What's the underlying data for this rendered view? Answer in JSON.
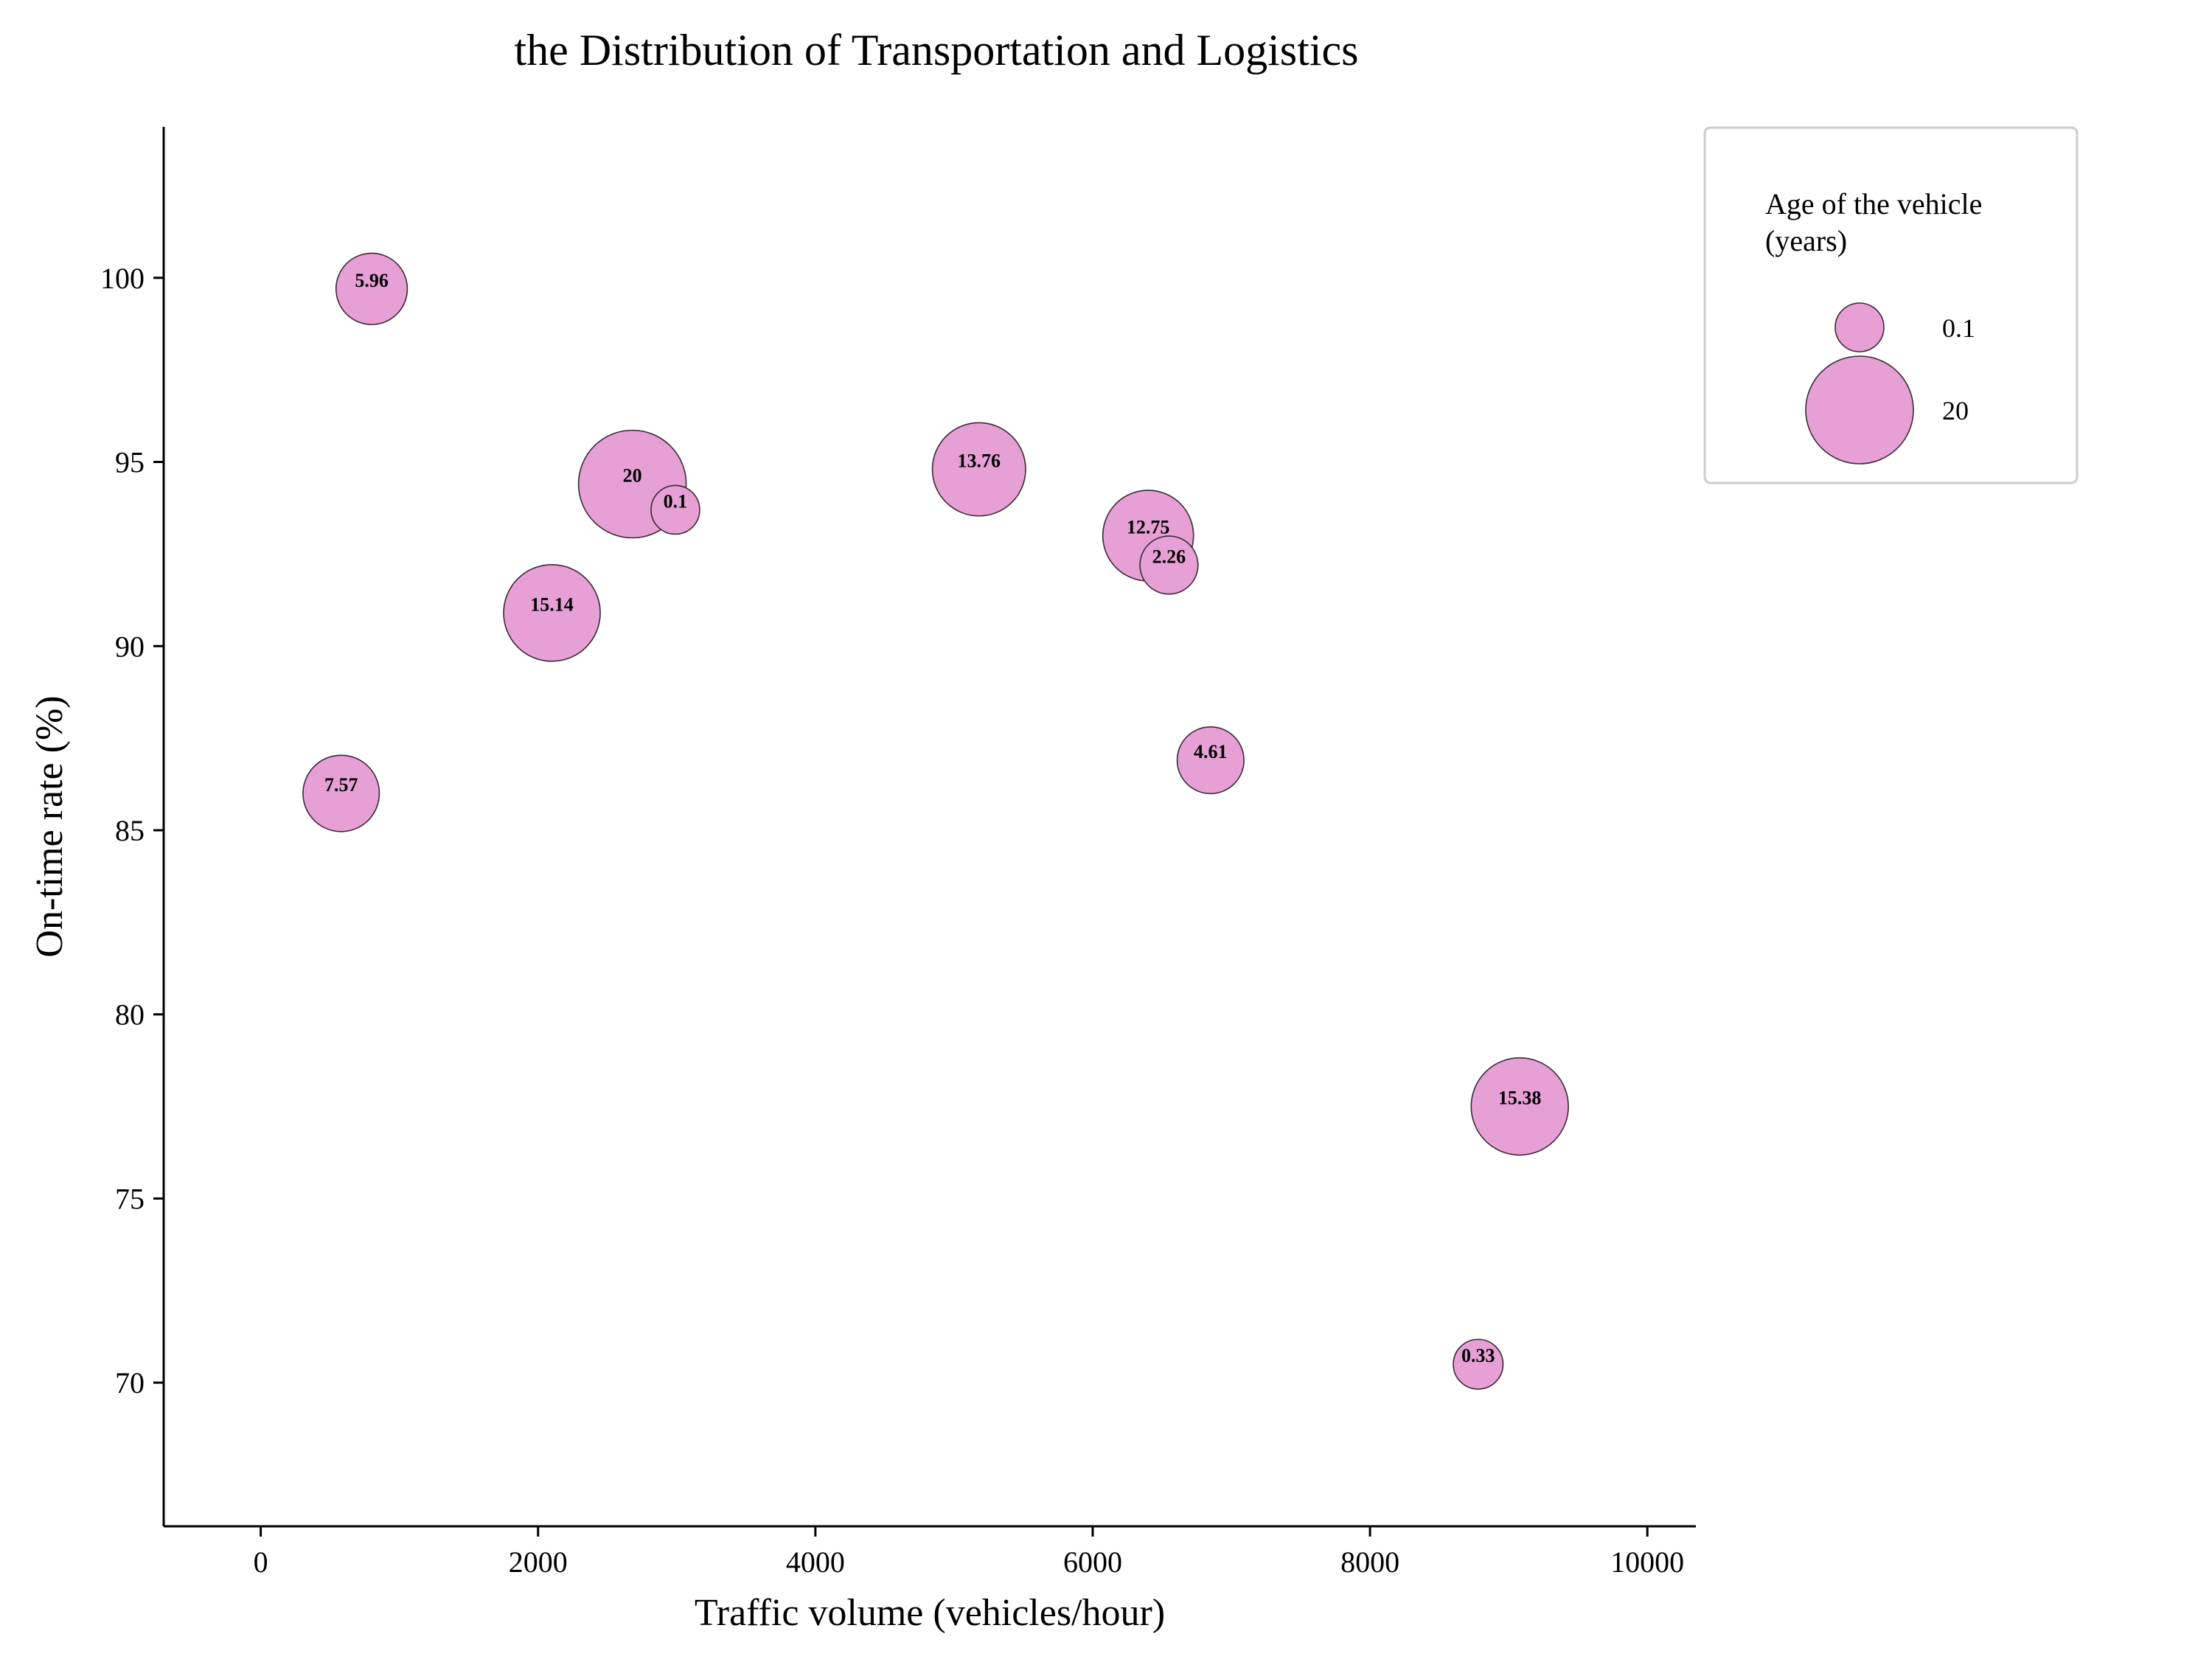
{
  "chart_data": {
    "type": "scatter",
    "title": "the Distribution of Transportation and Logistics",
    "xlabel": "Traffic volume (vehicles/hour)",
    "ylabel": "On-time rate (%)",
    "xlim": [
      -700,
      10350
    ],
    "ylim": [
      66.1,
      104.1
    ],
    "xticks": [
      0,
      2000,
      4000,
      6000,
      8000,
      10000
    ],
    "yticks": [
      70,
      75,
      80,
      85,
      90,
      95,
      100
    ],
    "grid": false,
    "legend_placement": "upper-right-outside",
    "size_legend": {
      "title": "Age of the vehicle\n(years)",
      "entries": [
        {
          "label": "0.1",
          "size": 0.1
        },
        {
          "label": "20",
          "size": 20
        }
      ]
    },
    "bubble_color": "#e7a0d6",
    "edge_color": "#3a2a35",
    "points": [
      {
        "x": 800,
        "y": 99.7,
        "size": 5.96,
        "label": "5.96"
      },
      {
        "x": 2680,
        "y": 94.4,
        "size": 20,
        "label": "20"
      },
      {
        "x": 2990,
        "y": 93.7,
        "size": 0.1,
        "label": "0.1"
      },
      {
        "x": 5180,
        "y": 94.8,
        "size": 13.76,
        "label": "13.76"
      },
      {
        "x": 6400,
        "y": 93.0,
        "size": 12.75,
        "label": "12.75"
      },
      {
        "x": 6550,
        "y": 92.2,
        "size": 2.26,
        "label": "2.26"
      },
      {
        "x": 2100,
        "y": 90.9,
        "size": 15.14,
        "label": "15.14"
      },
      {
        "x": 580,
        "y": 86.0,
        "size": 7.57,
        "label": "7.57"
      },
      {
        "x": 6850,
        "y": 86.9,
        "size": 4.61,
        "label": "4.61"
      },
      {
        "x": 9080,
        "y": 77.5,
        "size": 15.38,
        "label": "15.38"
      },
      {
        "x": 8780,
        "y": 70.5,
        "size": 0.33,
        "label": "0.33"
      }
    ]
  }
}
